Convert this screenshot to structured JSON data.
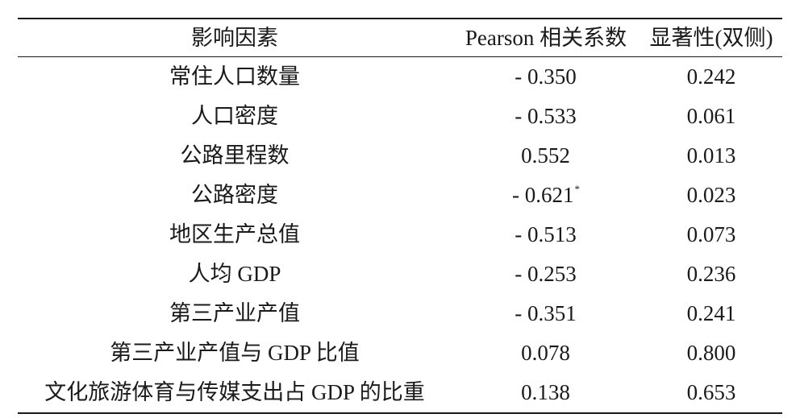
{
  "table": {
    "headers": [
      "影响因素",
      "Pearson 相关系数",
      "显著性(双侧)"
    ],
    "rows": [
      {
        "factor": "常住人口数量",
        "pearson": "- 0.350",
        "pearson_mark": "",
        "sig": "0.242"
      },
      {
        "factor": "人口密度",
        "pearson": "- 0.533",
        "pearson_mark": "",
        "sig": "0.061"
      },
      {
        "factor": "公路里程数",
        "pearson": "0.552",
        "pearson_mark": "",
        "sig": "0.013"
      },
      {
        "factor": "公路密度",
        "pearson": "- 0.621",
        "pearson_mark": "*",
        "sig": "0.023"
      },
      {
        "factor": "地区生产总值",
        "pearson": "- 0.513",
        "pearson_mark": "",
        "sig": "0.073"
      },
      {
        "factor": "人均 GDP",
        "pearson": "- 0.253",
        "pearson_mark": "",
        "sig": "0.236"
      },
      {
        "factor": "第三产业产值",
        "pearson": "- 0.351",
        "pearson_mark": "",
        "sig": "0.241"
      },
      {
        "factor": "第三产业产值与 GDP 比值",
        "pearson": "0.078",
        "pearson_mark": "",
        "sig": "0.800"
      },
      {
        "factor": "文化旅游体育与传媒支出占 GDP 的比重",
        "pearson": "0.138",
        "pearson_mark": "",
        "sig": "0.653"
      }
    ]
  }
}
